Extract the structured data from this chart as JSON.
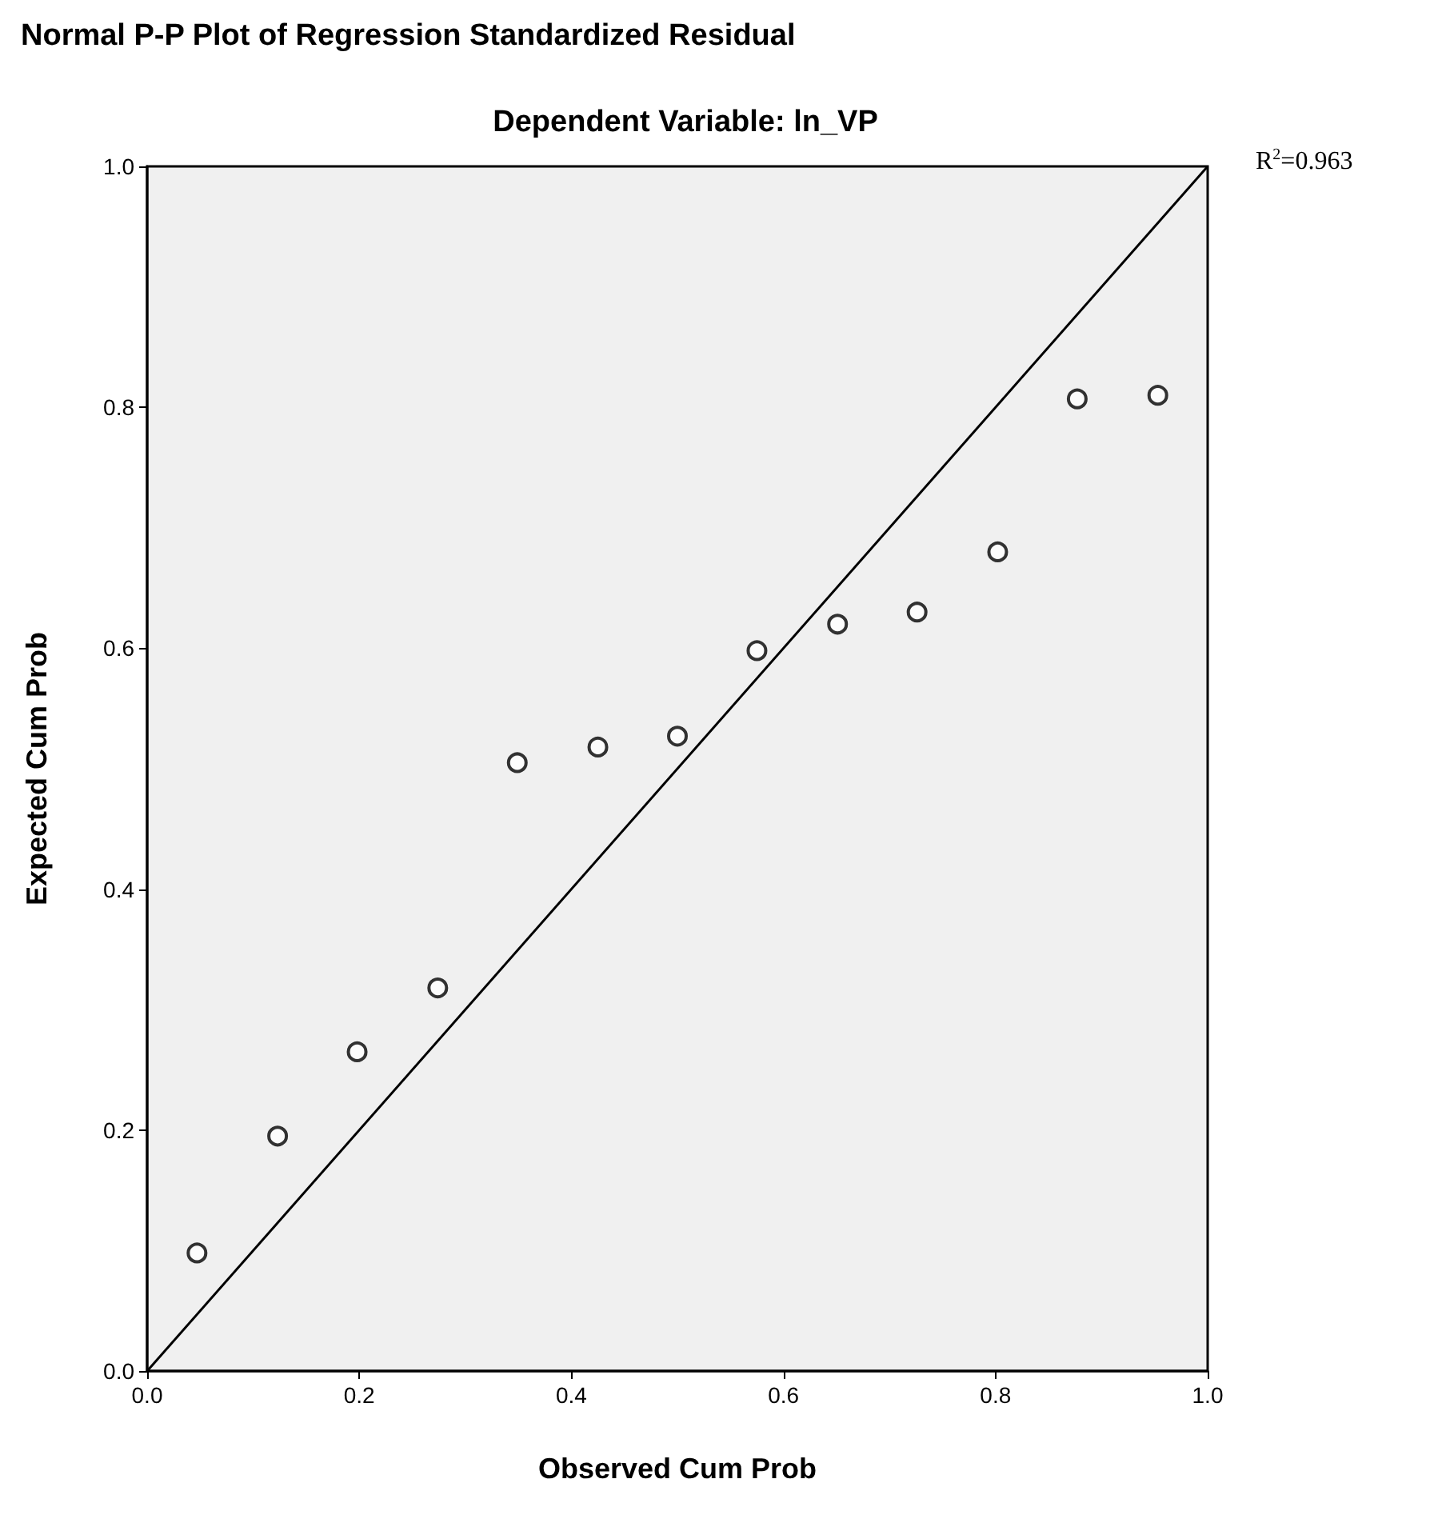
{
  "chart_data": {
    "type": "scatter",
    "title": "Normal P-P Plot of Regression Standardized Residual",
    "subtitle": "Dependent Variable: ln_VP",
    "xlabel": "Observed Cum Prob",
    "ylabel": "Expected Cum Prob",
    "annotations": [
      "R$^{2}$=0.963"
    ],
    "x": [
      0.047,
      0.123,
      0.198,
      0.274,
      0.349,
      0.425,
      0.5,
      0.575,
      0.651,
      0.726,
      0.802,
      0.877,
      0.953
    ],
    "series": [
      {
        "marker": "circle",
        "color": "#000000",
        "values": [
          0.098,
          0.195,
          0.265,
          0.318,
          0.505,
          0.518,
          0.527,
          0.598,
          0.62,
          0.63,
          0.68,
          0.807,
          0.81
        ]
      },
      {
        "type": "line",
        "marker": "none",
        "color": "#000000",
        "x": [
          0,
          1
        ],
        "values": [
          0,
          1
        ]
      }
    ],
    "xlim": [
      0,
      1
    ],
    "ylim": [
      0,
      1
    ],
    "xticks": [
      {
        "value": 0,
        "label": "0.0"
      },
      {
        "value": 0.2,
        "label": "0.2"
      },
      {
        "value": 0.4,
        "label": "0.4"
      },
      {
        "value": 0.6,
        "label": "0.6"
      },
      {
        "value": 0.8,
        "label": "0.8"
      },
      {
        "value": 1,
        "label": "1.0"
      }
    ],
    "yticks": [
      {
        "value": 0,
        "label": "0.0"
      },
      {
        "value": 0.2,
        "label": "0.2"
      },
      {
        "value": 0.4,
        "label": "0.4"
      },
      {
        "value": 0.6,
        "label": "0.6"
      },
      {
        "value": 0.8,
        "label": "0.8"
      },
      {
        "value": 1,
        "label": "1.0"
      }
    ],
    "grid": false,
    "line_style": "solid"
  }
}
